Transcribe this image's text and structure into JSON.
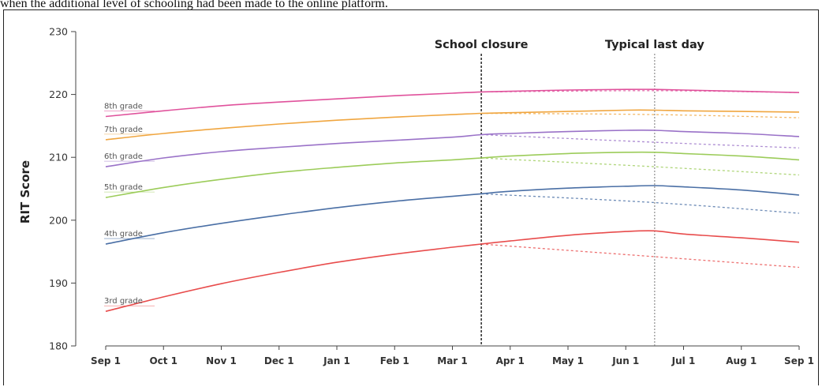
{
  "caption": "when the additional level of schooling had been made to the online platform.",
  "chart_data": {
    "type": "line",
    "title": "",
    "xlabel": "",
    "ylabel": "RIT Score",
    "ylim": [
      180,
      230
    ],
    "yticks": [
      180,
      190,
      200,
      210,
      220,
      230
    ],
    "x": [
      "Sep 1",
      "Oct 1",
      "Nov 1",
      "Dec 1",
      "Jan 1",
      "Feb 1",
      "Mar 1",
      "Apr 1",
      "May 1",
      "Jun 1",
      "Jul 1",
      "Aug 1",
      "Sep 1"
    ],
    "grid": false,
    "annotations": [
      {
        "label": "School closure",
        "x": "Mar 16",
        "style": "dashed-vertical"
      },
      {
        "label": "Typical last day",
        "x": "Jun 16",
        "style": "dotted-vertical"
      }
    ],
    "series": [
      {
        "name": "8th grade",
        "color": "#e0529c",
        "x": [
          0,
          1,
          2,
          3,
          4,
          5,
          6,
          6.5,
          7,
          8,
          9,
          9.5,
          10,
          11,
          12
        ],
        "values": [
          216.5,
          217.4,
          218.2,
          218.8,
          219.3,
          219.8,
          220.2,
          220.4,
          220.5,
          220.7,
          220.8,
          220.8,
          220.7,
          220.5,
          220.3
        ],
        "projection_x": [
          6.5,
          9.5,
          12
        ],
        "projection": [
          220.4,
          220.6,
          220.3
        ]
      },
      {
        "name": "7th grade",
        "color": "#f0a640",
        "x": [
          0,
          1,
          2,
          3,
          4,
          5,
          6,
          6.5,
          7,
          8,
          9,
          9.5,
          10,
          11,
          12
        ],
        "values": [
          212.8,
          213.8,
          214.6,
          215.3,
          215.9,
          216.4,
          216.8,
          217.0,
          217.1,
          217.3,
          217.5,
          217.5,
          217.4,
          217.3,
          217.2
        ],
        "projection_x": [
          6.5,
          9.5,
          12
        ],
        "projection": [
          217.0,
          216.8,
          216.3
        ]
      },
      {
        "name": "6th grade",
        "color": "#9a72c8",
        "x": [
          0,
          1,
          2,
          3,
          4,
          5,
          6,
          6.5,
          7,
          8,
          9,
          9.5,
          10,
          11,
          12
        ],
        "values": [
          208.5,
          209.9,
          210.9,
          211.6,
          212.2,
          212.7,
          213.2,
          213.6,
          213.8,
          214.1,
          214.3,
          214.3,
          214.1,
          213.8,
          213.3
        ],
        "projection_x": [
          6.5,
          9.5,
          12
        ],
        "projection": [
          213.6,
          212.4,
          211.5
        ]
      },
      {
        "name": "5th grade",
        "color": "#9ccc5a",
        "x": [
          0,
          1,
          2,
          3,
          4,
          5,
          6,
          6.5,
          7,
          8,
          9,
          9.5,
          10,
          11,
          12
        ],
        "values": [
          203.6,
          205.2,
          206.5,
          207.6,
          208.4,
          209.1,
          209.6,
          209.9,
          210.2,
          210.6,
          210.8,
          210.8,
          210.6,
          210.2,
          209.6
        ],
        "projection_x": [
          6.5,
          9.5,
          12
        ],
        "projection": [
          209.9,
          208.5,
          207.2
        ]
      },
      {
        "name": "4th grade",
        "color": "#4a6fa5",
        "x": [
          0,
          1,
          2,
          3,
          4,
          5,
          6,
          6.5,
          7,
          8,
          9,
          9.5,
          10,
          11,
          12
        ],
        "values": [
          196.2,
          198.0,
          199.5,
          200.8,
          202.0,
          203.0,
          203.8,
          204.2,
          204.6,
          205.1,
          205.4,
          205.5,
          205.3,
          204.8,
          204.0
        ],
        "projection_x": [
          6.5,
          9.5,
          12
        ],
        "projection": [
          204.2,
          202.8,
          201.1
        ]
      },
      {
        "name": "3rd grade",
        "color": "#e84c4c",
        "x": [
          0,
          1,
          2,
          3,
          4,
          5,
          6,
          6.5,
          7,
          8,
          9,
          9.5,
          10,
          11,
          12
        ],
        "values": [
          185.5,
          187.8,
          189.9,
          191.7,
          193.3,
          194.6,
          195.7,
          196.2,
          196.7,
          197.6,
          198.2,
          198.3,
          197.8,
          197.2,
          196.5
        ],
        "projection_x": [
          6.5,
          9.5,
          12
        ],
        "projection": [
          196.2,
          194.2,
          192.5
        ]
      }
    ]
  }
}
